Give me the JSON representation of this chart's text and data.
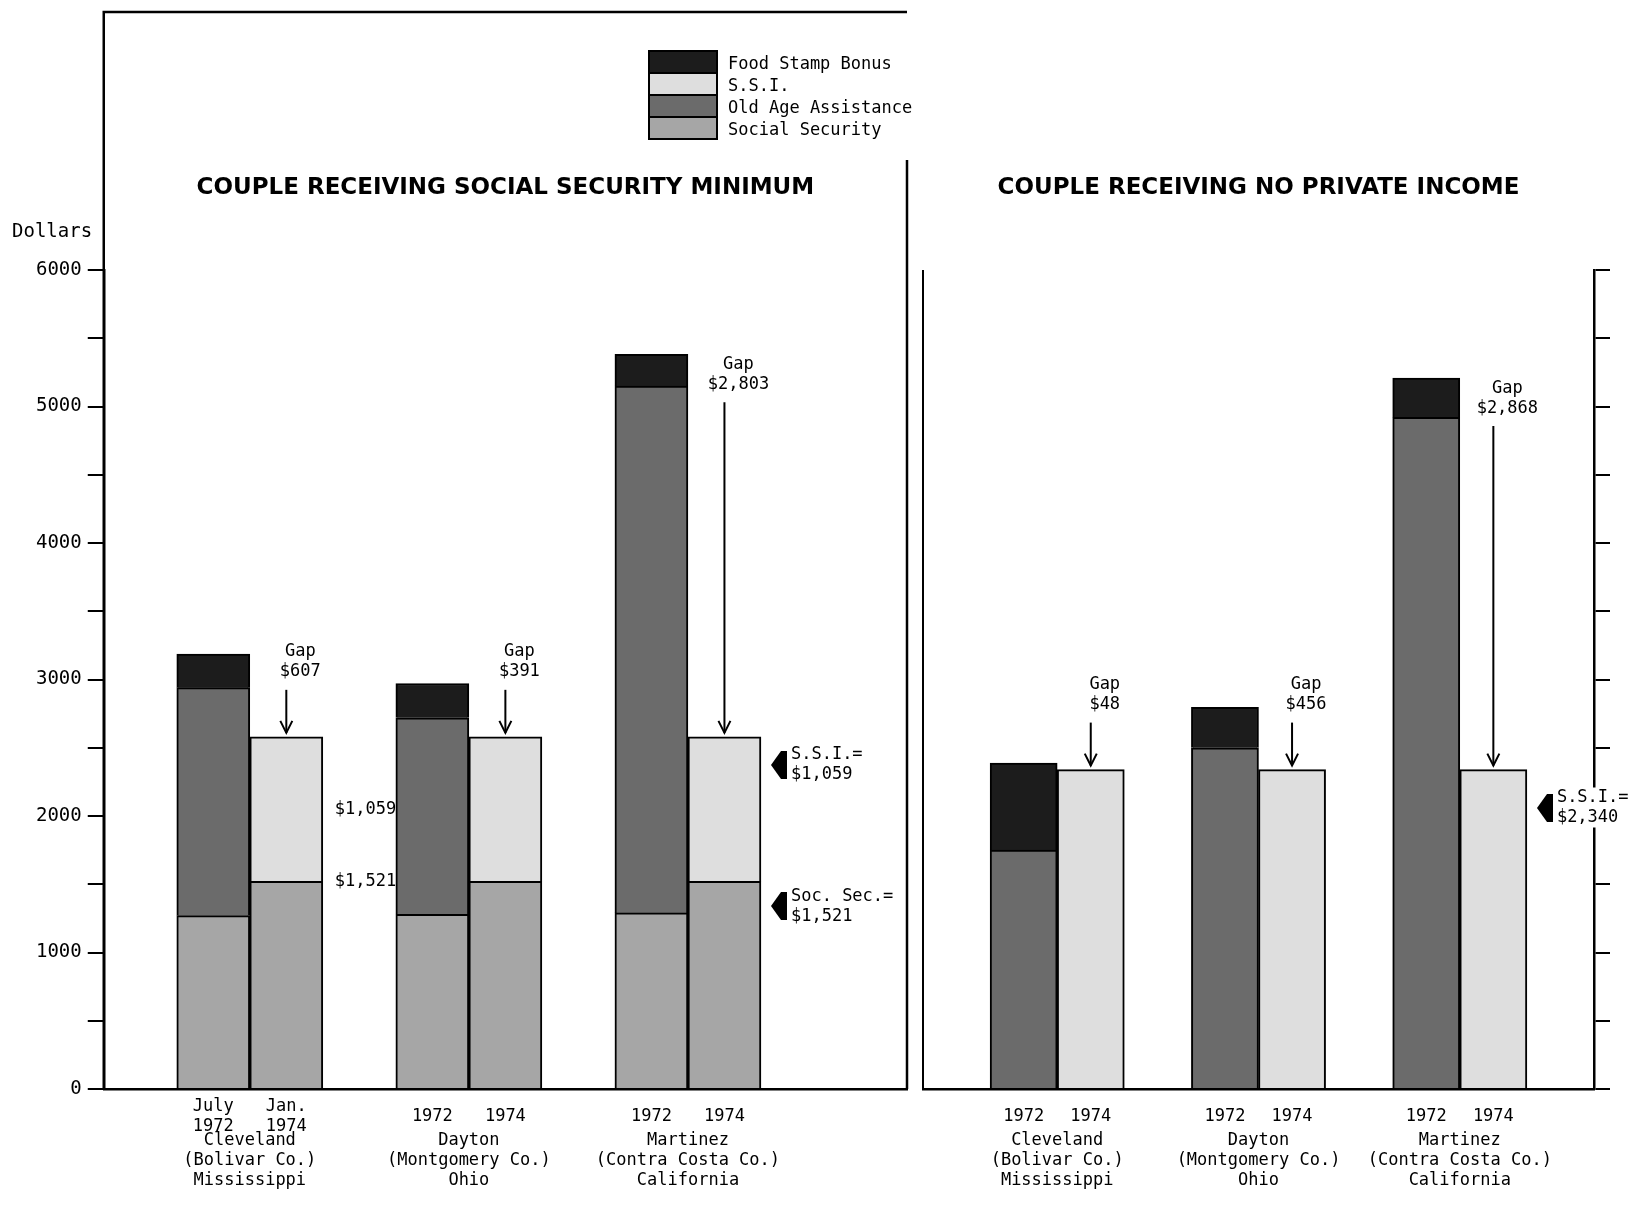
{
  "chart_data": [
    {
      "type": "bar",
      "title": "COUPLE RECEIVING SOCIAL SECURITY MINIMUM",
      "ylabel": "Dollars",
      "categories": [
        null,
        "July\n1972",
        "Jan.\n1974",
        null,
        "1972",
        "1974",
        null,
        "1972",
        "1974",
        null,
        null
      ],
      "stacked": true,
      "series": [
        {
          "name": "Social Security",
          "color": "#a6a6a6",
          "values": [
            null,
            1270,
            1521,
            null,
            1280,
            1521,
            null,
            1290,
            1521,
            null,
            null
          ]
        },
        {
          "name": "Old Age Assistance",
          "color": "#6b6b6b",
          "values": [
            null,
            1670,
            null,
            null,
            1440,
            null,
            null,
            3860,
            null,
            null,
            null
          ]
        },
        {
          "name": "S.S.I.",
          "color": "#dedede",
          "values": [
            null,
            null,
            1059,
            null,
            null,
            1059,
            null,
            null,
            1059,
            null,
            null
          ]
        },
        {
          "name": "Food Stamp Bonus",
          "color": "#1c1c1c",
          "values": [
            null,
            247,
            null,
            null,
            251,
            null,
            null,
            233,
            null,
            null,
            null
          ]
        }
      ],
      "ylim": [
        0,
        6000
      ],
      "yticks": [
        0,
        {
          "value": 500,
          "label": null
        },
        1000,
        {
          "value": 1500,
          "label": null
        },
        2000,
        {
          "value": 2500,
          "label": null
        },
        3000,
        {
          "value": 3500,
          "label": null
        },
        4000,
        {
          "value": 4500,
          "label": null
        },
        5000,
        {
          "value": 5500,
          "label": null
        },
        6000
      ],
      "legend": "top",
      "annotations": [
        {
          "text": "Gap\n$607",
          "x": "Jan.\n1974",
          "y": 2580
        },
        "Gap\n$391",
        "Gap\n$2,803",
        "$1,059",
        {
          "text": "$1,521",
          "x": "Jan.\n1974",
          "y": 1521
        },
        "S.S.I.=\n$1,059",
        "Soc. Sec.=\n$1,521",
        "Cleveland\n(Bolivar Co.)\nMississippi",
        "Dayton\n(Montgomery Co.)\nOhio",
        "Martinez\n(Contra Costa Co.)\nCalifornia"
      ]
    },
    {
      "type": "bar",
      "title": "COUPLE RECEIVING NO PRIVATE INCOME",
      "categories": [
        null,
        "1972",
        "1974",
        null,
        "1972",
        "1974",
        null,
        "1972",
        "1974",
        null
      ],
      "stacked": true,
      "series": [
        {
          "color": "#6b6b6b",
          "values": [
            null,
            1750,
            null,
            null,
            2500,
            null,
            null,
            4920,
            null,
            null
          ]
        },
        {
          "color": "#dedede",
          "values": [
            null,
            null,
            2340,
            null,
            null,
            2340,
            null,
            null,
            2340,
            null
          ]
        },
        {
          "color": "#1c1c1c",
          "values": [
            null,
            638,
            null,
            null,
            296,
            null,
            null,
            288,
            null,
            null
          ]
        }
      ],
      "ylim": [
        0,
        6000
      ],
      "yticks": [
        0,
        500,
        1000,
        1500,
        2000,
        2500,
        3000,
        3500,
        4000,
        4500,
        5000,
        5500,
        6000
      ],
      "tick_labels": "x",
      "annotations": [
        {
          "text": "Gap\n$48",
          "x": "1974",
          "y": 2340
        },
        "Gap\n$456",
        "Gap\n$2,868",
        "S.S.I.=\n$2,340",
        "Cleveland\n(Bolivar Co.)\nMississippi",
        "Dayton\n(Montgomery Co.)\nOhio",
        "Martinez\n(Contra Costa Co.)\nCalifornia"
      ]
    }
  ]
}
